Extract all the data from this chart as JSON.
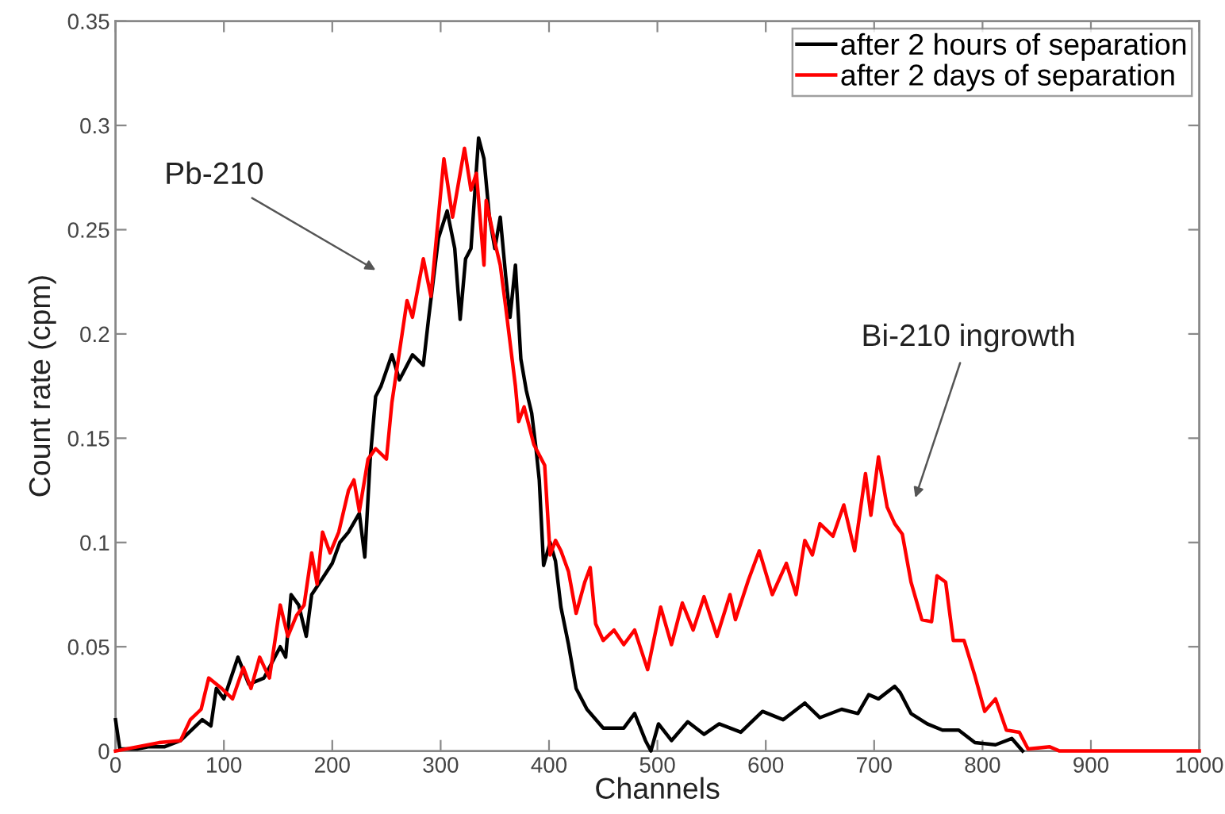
{
  "chart_data": {
    "type": "line",
    "xlabel": "Channels",
    "ylabel": "Count rate (cpm)",
    "xlim": [
      0,
      1000
    ],
    "xticks": [
      0,
      100,
      200,
      300,
      400,
      500,
      600,
      700,
      800,
      900,
      1000
    ],
    "ylim": [
      0,
      0.35
    ],
    "yticks": [
      0,
      0.05,
      0.1,
      0.15,
      0.2,
      0.25,
      0.3,
      0.35
    ],
    "grid": false,
    "legend": "top right",
    "annotations": [
      "Pb-210",
      "Bi-210 ingrowth"
    ],
    "series": [
      {
        "name": "after 2 hours of separation",
        "color": "#000000",
        "x": [
          0,
          4,
          20,
          30,
          45,
          60,
          70,
          80,
          88,
          93,
          100,
          113,
          123,
          137,
          147,
          152,
          157,
          162,
          169,
          176,
          181,
          190,
          200,
          207,
          215,
          225,
          230,
          235,
          240,
          245,
          255,
          262,
          274,
          284,
          289,
          298,
          306,
          313,
          318,
          323,
          328,
          335,
          340,
          345,
          350,
          355,
          360,
          364,
          369,
          374,
          379,
          384,
          388,
          391,
          395,
          401,
          406,
          411,
          418,
          425,
          435,
          450,
          469,
          479,
          489,
          494,
          501,
          513,
          528,
          543,
          557,
          577,
          597,
          616,
          636,
          650,
          670,
          685,
          695,
          704,
          719,
          724,
          734,
          749,
          763,
          778,
          793,
          812,
          827,
          837
        ],
        "values": [
          0.015,
          0.001,
          0.001,
          0.002,
          0.002,
          0.005,
          0.01,
          0.015,
          0.012,
          0.03,
          0.025,
          0.045,
          0.032,
          0.035,
          0.045,
          0.05,
          0.045,
          0.075,
          0.07,
          0.055,
          0.075,
          0.082,
          0.09,
          0.1,
          0.105,
          0.114,
          0.093,
          0.14,
          0.17,
          0.175,
          0.19,
          0.178,
          0.19,
          0.185,
          0.208,
          0.246,
          0.259,
          0.241,
          0.207,
          0.236,
          0.241,
          0.294,
          0.284,
          0.256,
          0.241,
          0.256,
          0.228,
          0.208,
          0.233,
          0.188,
          0.173,
          0.162,
          0.145,
          0.13,
          0.089,
          0.1,
          0.091,
          0.069,
          0.051,
          0.03,
          0.02,
          0.011,
          0.011,
          0.018,
          0.005,
          0,
          0.013,
          0.005,
          0.014,
          0.008,
          0.013,
          0.009,
          0.019,
          0.015,
          0.023,
          0.016,
          0.02,
          0.018,
          0.027,
          0.025,
          0.031,
          0.028,
          0.018,
          0.013,
          0.01,
          0.01,
          0.004,
          0.003,
          0.006,
          0
        ]
      },
      {
        "name": "after 2 days of separation",
        "color": "#ff0000",
        "x": [
          0,
          20,
          40,
          60,
          69,
          79,
          86,
          98,
          108,
          118,
          125,
          133,
          142,
          152,
          159,
          167,
          174,
          181,
          186,
          191,
          198,
          206,
          215,
          220,
          225,
          233,
          240,
          250,
          255,
          269,
          274,
          284,
          291,
          303,
          311,
          322,
          328,
          333,
          340,
          342,
          350,
          355,
          360,
          369,
          372,
          377,
          386,
          396,
          401,
          406,
          411,
          418,
          425,
          433,
          438,
          443,
          450,
          460,
          469,
          479,
          491,
          503,
          513,
          523,
          533,
          543,
          555,
          567,
          572,
          584,
          594,
          606,
          619,
          628,
          636,
          643,
          650,
          662,
          672,
          682,
          692,
          697,
          704,
          712,
          719,
          726,
          734,
          744,
          753,
          758,
          766,
          773,
          783,
          793,
          802,
          812,
          822,
          834,
          842,
          862,
          871,
          1000
        ],
        "values": [
          0,
          0.002,
          0.004,
          0.005,
          0.015,
          0.02,
          0.035,
          0.03,
          0.025,
          0.04,
          0.03,
          0.045,
          0.035,
          0.07,
          0.055,
          0.065,
          0.07,
          0.095,
          0.08,
          0.105,
          0.095,
          0.105,
          0.125,
          0.13,
          0.115,
          0.14,
          0.145,
          0.14,
          0.167,
          0.216,
          0.208,
          0.236,
          0.218,
          0.284,
          0.256,
          0.289,
          0.269,
          0.277,
          0.233,
          0.264,
          0.244,
          0.233,
          0.213,
          0.175,
          0.158,
          0.165,
          0.147,
          0.137,
          0.094,
          0.101,
          0.096,
          0.086,
          0.066,
          0.081,
          0.088,
          0.061,
          0.053,
          0.058,
          0.051,
          0.058,
          0.039,
          0.069,
          0.051,
          0.071,
          0.058,
          0.074,
          0.055,
          0.075,
          0.063,
          0.082,
          0.096,
          0.075,
          0.09,
          0.075,
          0.101,
          0.094,
          0.109,
          0.103,
          0.118,
          0.096,
          0.133,
          0.113,
          0.141,
          0.117,
          0.109,
          0.104,
          0.081,
          0.063,
          0.062,
          0.084,
          0.081,
          0.053,
          0.053,
          0.036,
          0.019,
          0.025,
          0.01,
          0.009,
          0.001,
          0.002,
          0,
          0
        ]
      }
    ]
  }
}
